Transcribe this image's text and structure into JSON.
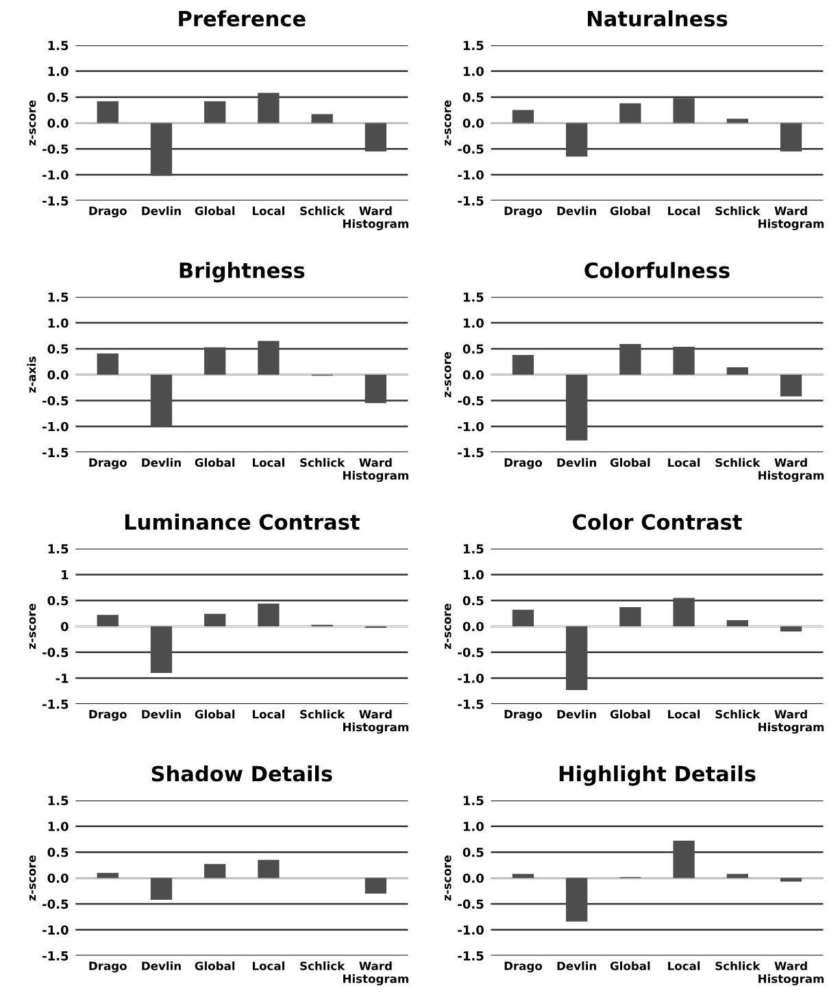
{
  "chart_data": [
    {
      "type": "bar",
      "title": "Preference",
      "ylabel": "z-score",
      "categories": [
        "Drago",
        "Devlin",
        "Global",
        "Local",
        "Schlick",
        "Ward Histogram"
      ],
      "values": [
        0.42,
        -1.02,
        0.42,
        0.58,
        0.17,
        -0.55
      ],
      "color": "#4d4d4d",
      "ylim": [
        -1.5,
        1.5
      ],
      "yticks": [
        {
          "value": 1.5,
          "label": "1.5"
        },
        {
          "value": 1,
          "label": "1.0"
        },
        {
          "value": 0.5,
          "label": "0.5"
        },
        {
          "value": 0,
          "label": "0.0"
        },
        {
          "value": -0.5,
          "label": "-0.5"
        },
        {
          "value": -1,
          "label": "-1.0"
        },
        {
          "value": -1.5,
          "label": "-1.5"
        }
      ],
      "grid": "y"
    },
    {
      "type": "bar",
      "title": "Naturalness",
      "ylabel": "z-score",
      "categories": [
        "Drago",
        "Devlin",
        "Global",
        "Local",
        "Schlick",
        "Ward Histogram"
      ],
      "values": [
        0.25,
        -0.65,
        0.38,
        0.48,
        0.08,
        -0.55
      ],
      "color": "#4d4d4d",
      "ylim": [
        -1.5,
        1.5
      ],
      "yticks": [
        {
          "value": 1.5,
          "label": "1.5"
        },
        {
          "value": 1,
          "label": "1.0"
        },
        {
          "value": 0.5,
          "label": "0.5"
        },
        {
          "value": 0,
          "label": "0.0"
        },
        {
          "value": -0.5,
          "label": "-0.5"
        },
        {
          "value": -1,
          "label": "-1.0"
        },
        {
          "value": -1.5,
          "label": "-1.5"
        }
      ],
      "grid": "y"
    },
    {
      "type": "bar",
      "title": "Brightness",
      "ylabel": "z-axis",
      "categories": [
        "Drago",
        "Devlin",
        "Global",
        "Local",
        "Schlick",
        "Ward Histogram"
      ],
      "values": [
        0.41,
        -1.0,
        0.53,
        0.65,
        -0.02,
        -0.55
      ],
      "color": "#4d4d4d",
      "ylim": [
        -1.5,
        1.5
      ],
      "yticks": [
        {
          "value": 1.5,
          "label": "1.5"
        },
        {
          "value": 1,
          "label": "1.0"
        },
        {
          "value": 0.5,
          "label": "0.5"
        },
        {
          "value": 0,
          "label": "0.0"
        },
        {
          "value": -0.5,
          "label": "-0.5"
        },
        {
          "value": -1,
          "label": "-1.0"
        },
        {
          "value": -1.5,
          "label": "-1.5"
        }
      ],
      "grid": "y"
    },
    {
      "type": "bar",
      "title": "Colorfulness",
      "ylabel": "z-score",
      "categories": [
        "Drago",
        "Devlin",
        "Global",
        "Local",
        "Schlick",
        "Ward Histogram"
      ],
      "values": [
        0.38,
        -1.27,
        0.59,
        0.54,
        0.14,
        -0.42
      ],
      "color": "#4d4d4d",
      "ylim": [
        -1.5,
        1.5
      ],
      "yticks": [
        {
          "value": 1.5,
          "label": "1.5"
        },
        {
          "value": 1,
          "label": "1.0"
        },
        {
          "value": 0.5,
          "label": "0.5"
        },
        {
          "value": 0,
          "label": "0.0"
        },
        {
          "value": -0.5,
          "label": "-0.5"
        },
        {
          "value": -1,
          "label": "-1.0"
        },
        {
          "value": -1.5,
          "label": "-1.5"
        }
      ],
      "grid": "y"
    },
    {
      "type": "bar",
      "title": "Luminance Contrast",
      "ylabel": "z-score",
      "categories": [
        "Drago",
        "Devlin",
        "Global",
        "Local",
        "Schlick",
        "Ward Histogram"
      ],
      "values": [
        0.22,
        -0.9,
        0.24,
        0.44,
        0.03,
        -0.03
      ],
      "color": "#4d4d4d",
      "ylim": [
        -1.5,
        1.5
      ],
      "yticks": [
        1.5,
        1,
        0.5,
        0,
        -0.5,
        -1,
        -1.5
      ],
      "grid": "y"
    },
    {
      "type": "bar",
      "title": "Color Contrast",
      "ylabel": "z-score",
      "categories": [
        "Drago",
        "Devlin",
        "Global",
        "Local",
        "Schlick",
        "Ward Histogram"
      ],
      "values": [
        0.32,
        -1.23,
        0.37,
        0.55,
        0.12,
        -0.1
      ],
      "color": "#4d4d4d",
      "ylim": [
        -1.5,
        1.5
      ],
      "yticks": [
        {
          "value": 1.5,
          "label": "1.5"
        },
        {
          "value": 1,
          "label": "1.0"
        },
        {
          "value": 0.5,
          "label": "0.5"
        },
        {
          "value": 0,
          "label": "0.0"
        },
        {
          "value": -0.5,
          "label": "-0.5"
        },
        {
          "value": -1,
          "label": "-1.0"
        },
        {
          "value": -1.5,
          "label": "-1.5"
        }
      ],
      "grid": "y"
    },
    {
      "type": "bar",
      "title": "Shadow Details",
      "ylabel": "z-score",
      "categories": [
        "Drago",
        "Devlin",
        "Global",
        "Local",
        "Schlick",
        "Ward Histogram"
      ],
      "values": [
        0.1,
        -0.42,
        0.27,
        0.35,
        0.0,
        -0.3
      ],
      "color": "#4d4d4d",
      "ylim": [
        -1.5,
        1.5
      ],
      "yticks": [
        {
          "value": 1.5,
          "label": "1.5"
        },
        {
          "value": 1,
          "label": "1.0"
        },
        {
          "value": 0.5,
          "label": "0.5"
        },
        {
          "value": 0,
          "label": "0.0"
        },
        {
          "value": -0.5,
          "label": "-0.5"
        },
        {
          "value": -1,
          "label": "-1.0"
        },
        {
          "value": -1.5,
          "label": "-1.5"
        }
      ],
      "grid": "y"
    },
    {
      "type": "bar",
      "title": "Highlight Details",
      "ylabel": "z-score",
      "categories": [
        "Drago",
        "Devlin",
        "Global",
        "Local",
        "Schlick",
        "Ward Histogram"
      ],
      "values": [
        0.08,
        -0.84,
        0.02,
        0.72,
        0.08,
        -0.07
      ],
      "color": "#4d4d4d",
      "ylim": [
        -1.5,
        1.5
      ],
      "yticks": [
        {
          "value": 1.5,
          "label": "1.5"
        },
        {
          "value": 1,
          "label": "1.0"
        },
        {
          "value": 0.5,
          "label": "0.5"
        },
        {
          "value": 0,
          "label": "0.0"
        },
        {
          "value": -0.5,
          "label": "-0.5"
        },
        {
          "value": -1,
          "label": "-1.0"
        },
        {
          "value": -1.5,
          "label": "-1.5"
        }
      ],
      "grid": "y"
    }
  ]
}
